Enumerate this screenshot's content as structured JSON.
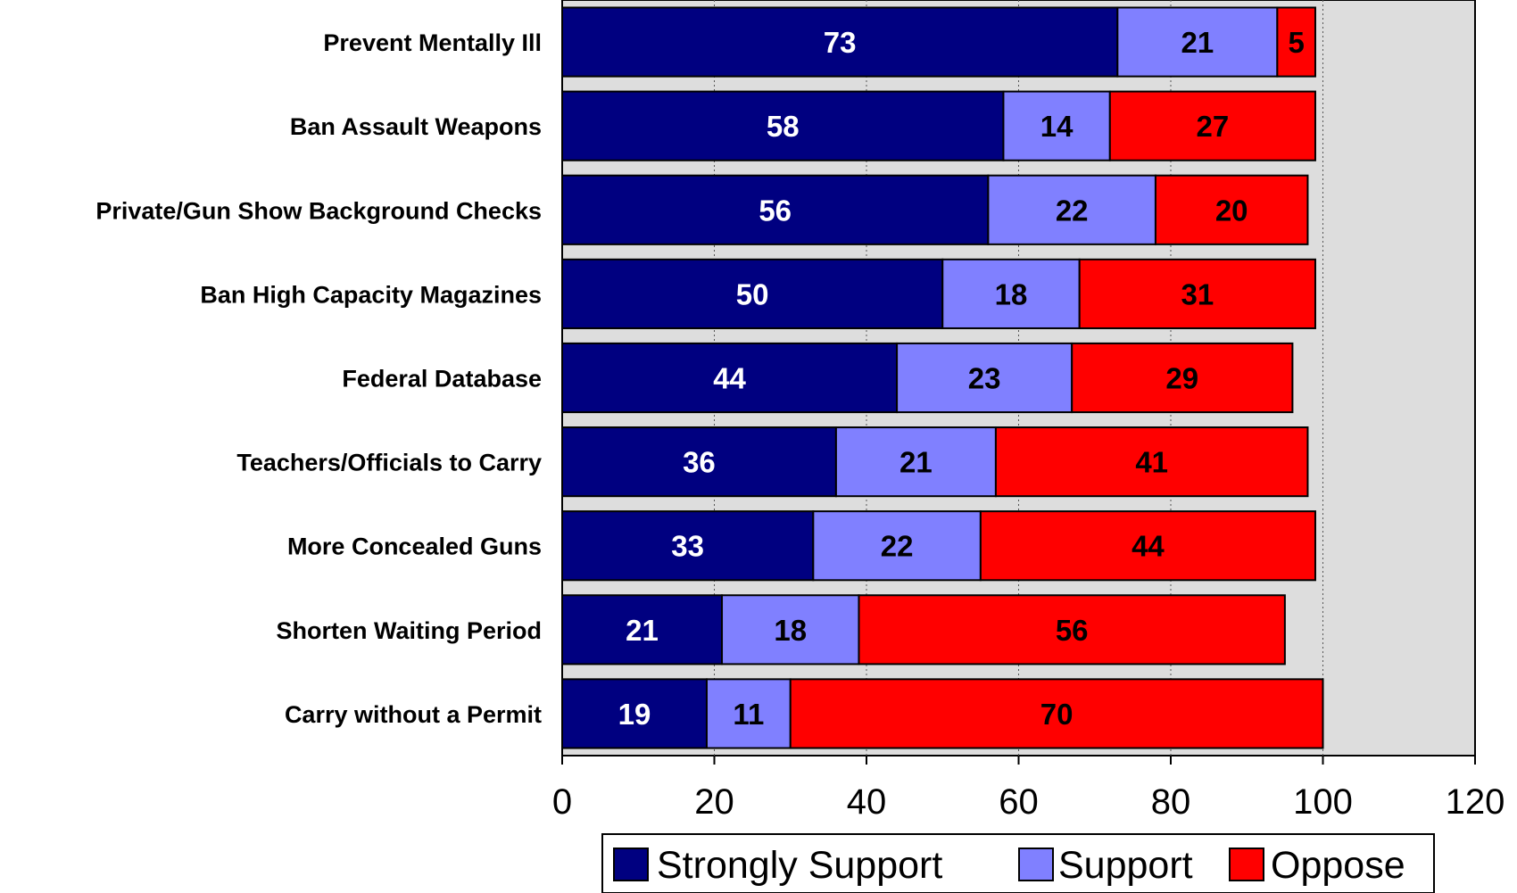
{
  "chart_data": {
    "type": "bar",
    "orientation": "horizontal",
    "stacked": true,
    "categories": [
      "Prevent Mentally Ill",
      "Ban Assault Weapons",
      "Private/Gun Show Background Checks",
      "Ban High Capacity Magazines",
      "Federal Database",
      "Teachers/Officials to Carry",
      "More Concealed Guns",
      "Shorten Waiting Period",
      "Carry without a Permit"
    ],
    "series": [
      {
        "name": "Strongly Support",
        "color": "#000080",
        "label_color": "#ffffff",
        "values": [
          73,
          58,
          56,
          50,
          44,
          36,
          33,
          21,
          19
        ]
      },
      {
        "name": "Support",
        "color": "#8080ff",
        "label_color": "#000000",
        "values": [
          21,
          14,
          22,
          18,
          23,
          21,
          22,
          18,
          11
        ]
      },
      {
        "name": "Oppose",
        "color": "#ff0000",
        "label_color": "#000000",
        "values": [
          5,
          27,
          20,
          31,
          29,
          41,
          44,
          56,
          70
        ]
      }
    ],
    "xlim": [
      0,
      120
    ],
    "xticks": [
      "0",
      "20",
      "40",
      "60",
      "80",
      "100",
      "120"
    ],
    "grid": true,
    "plot_background": "#dddddd",
    "legend_position": "bottom"
  }
}
